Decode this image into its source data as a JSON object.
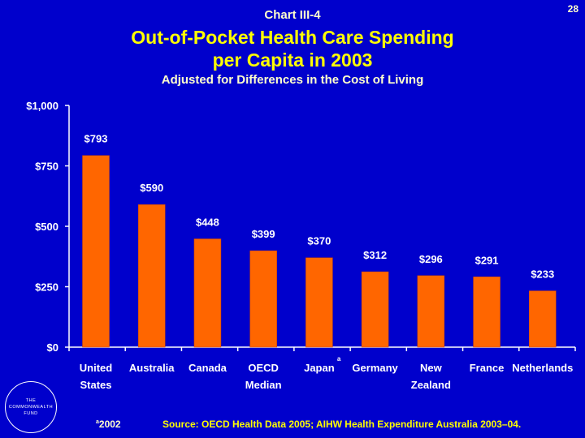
{
  "header": {
    "chart_label": "Chart III-4",
    "page_number": "28",
    "title_line1": "Out-of-Pocket Health Care Spending",
    "title_line2": "per Capita in 2003",
    "subtitle": "Adjusted for Differences in the Cost of Living"
  },
  "chart_data": {
    "type": "bar",
    "title": "Out-of-Pocket Health Care Spending per Capita in 2003",
    "subtitle": "Adjusted for Differences in the Cost of Living",
    "categories": [
      [
        "United",
        "States"
      ],
      [
        "Australia"
      ],
      [
        "Canada"
      ],
      [
        "OECD",
        "Median"
      ],
      [
        "Japan"
      ],
      [
        "Germany"
      ],
      [
        "New",
        "Zealand"
      ],
      [
        "France"
      ],
      [
        "Netherlands"
      ]
    ],
    "category_footnotes": [
      "",
      "",
      "",
      "",
      "a",
      "",
      "",
      "",
      ""
    ],
    "values": [
      793,
      590,
      448,
      399,
      370,
      312,
      296,
      291,
      233
    ],
    "data_labels": [
      "$793",
      "$590",
      "$448",
      "$399",
      "$370",
      "$312",
      "$296",
      "$291",
      "$233"
    ],
    "ylim": [
      0,
      1000
    ],
    "yticks": [
      0,
      250,
      500,
      750,
      1000
    ],
    "ytick_labels": [
      "$0",
      "$250",
      "$500",
      "$750",
      "$1,000"
    ],
    "xlabel": "",
    "ylabel": "",
    "bar_color": "#FF6600",
    "grid": false
  },
  "footer": {
    "logo_lines": [
      "THE",
      "COMMONWEALTH",
      "FUND"
    ],
    "footnote_marker": "a",
    "footnote_text": "2002",
    "source": "Source: OECD Health Data 2005; AIHW Health Expenditure Australia 2003–04."
  },
  "colors": {
    "background": "#0000CC",
    "title": "#FFFF00",
    "text": "#FFFFFF",
    "bar": "#FF6600"
  }
}
